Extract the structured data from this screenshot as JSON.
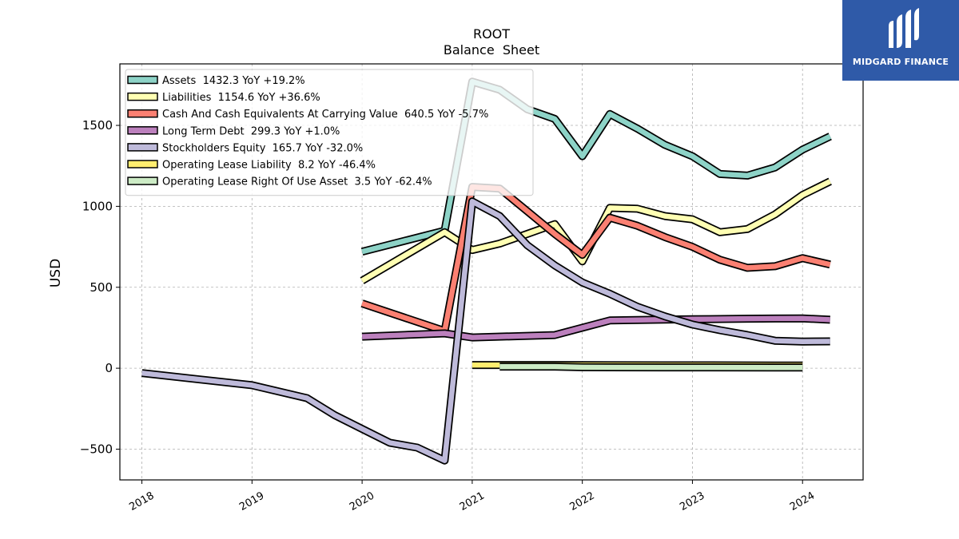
{
  "chart_data": {
    "type": "line",
    "title": "ROOT",
    "subtitle": "Balance  Sheet",
    "xlabel": "",
    "ylabel": "USD",
    "xlim": [
      2017.8,
      2024.55
    ],
    "ylim": [
      -690,
      1880
    ],
    "x_ticks": [
      2018,
      2019,
      2020,
      2021,
      2022,
      2023,
      2024
    ],
    "x_tick_labels": [
      "2018",
      "2019",
      "2020",
      "2021",
      "2022",
      "2023",
      "2024"
    ],
    "y_ticks": [
      -500,
      0,
      500,
      1000,
      1500
    ],
    "y_tick_labels": [
      "−500",
      "0",
      "500",
      "1000",
      "1500"
    ],
    "grid": true,
    "legend_position": "top-left",
    "series": [
      {
        "name": "Assets",
        "legend": "Assets  1432.3 YoY +19.2%",
        "color": "#8dd3c7",
        "x": [
          2020.0,
          2020.75,
          2021.0,
          2021.25,
          2021.5,
          2021.75,
          2022.0,
          2022.25,
          2022.5,
          2022.75,
          2023.0,
          2023.25,
          2023.5,
          2023.75,
          2024.0,
          2024.25
        ],
        "y": [
          720,
          850,
          1770,
          1720,
          1600,
          1540,
          1310,
          1570,
          1480,
          1380,
          1310,
          1200,
          1190,
          1240,
          1350,
          1432.3
        ]
      },
      {
        "name": "Liabilities",
        "legend": "Liabilities  1154.6 YoY +36.6%",
        "color": "#ffffb3",
        "x": [
          2020.0,
          2020.75,
          2021.0,
          2021.25,
          2021.5,
          2021.75,
          2022.0,
          2022.25,
          2022.5,
          2022.75,
          2023.0,
          2023.25,
          2023.5,
          2023.75,
          2024.0,
          2024.25
        ],
        "y": [
          540,
          840,
          730,
          770,
          830,
          890,
          660,
          990,
          985,
          940,
          920,
          840,
          860,
          950,
          1070,
          1154.6
        ]
      },
      {
        "name": "Cash And Cash Equivalents At Carrying Value",
        "legend": "Cash And Cash Equivalents At Carrying Value  640.5 YoY -5.7%",
        "color": "#fb8072",
        "x": [
          2020.0,
          2020.75,
          2021.0,
          2021.25,
          2021.5,
          2021.75,
          2022.0,
          2022.25,
          2022.5,
          2022.75,
          2023.0,
          2023.25,
          2023.5,
          2023.75,
          2024.0,
          2024.25
        ],
        "y": [
          400,
          230,
          1120,
          1110,
          970,
          830,
          700,
          930,
          880,
          810,
          750,
          670,
          620,
          630,
          680,
          640.5
        ]
      },
      {
        "name": "Long Term Debt",
        "legend": "Long Term Debt  299.3 YoY +1.0%",
        "color": "#bc80bd",
        "x": [
          2020.0,
          2020.75,
          2021.0,
          2021.75,
          2022.0,
          2022.25,
          2022.75,
          2023.0,
          2023.25,
          2023.5,
          2023.75,
          2024.0,
          2024.25
        ],
        "y": [
          195,
          215,
          190,
          205,
          250,
          295,
          300,
          303,
          304,
          306,
          307,
          308,
          299.3
        ]
      },
      {
        "name": "Stockholders Equity",
        "legend": "Stockholders Equity  165.7 YoY -32.0%",
        "color": "#bebada",
        "x": [
          2018.0,
          2019.0,
          2019.5,
          2019.75,
          2020.0,
          2020.25,
          2020.5,
          2020.75,
          2021.0,
          2021.25,
          2021.5,
          2021.75,
          2022.0,
          2022.25,
          2022.5,
          2022.75,
          2023.0,
          2023.25,
          2023.5,
          2023.75,
          2024.0,
          2024.25
        ],
        "y": [
          -30,
          -105,
          -185,
          -290,
          -375,
          -460,
          -490,
          -570,
          1030,
          940,
          760,
          635,
          530,
          460,
          380,
          320,
          270,
          235,
          205,
          170,
          165,
          165.7
        ]
      },
      {
        "name": "Operating Lease Liability",
        "legend": "Operating Lease Liability  8.2 YoY -46.4%",
        "color": "#ffed6f",
        "x": [
          2021.0,
          2021.75,
          2022.0,
          2022.75,
          2023.0,
          2023.75,
          2024.0
        ],
        "y": [
          20,
          20,
          19,
          18,
          18,
          17,
          17
        ]
      },
      {
        "name": "Operating Lease Right Of Use Asset",
        "legend": "Operating Lease Right Of Use Asset  3.5 YoY -62.4%",
        "color": "#ccebc5",
        "x": [
          2021.25,
          2021.75,
          2022.0,
          2022.75,
          2023.0,
          2023.75,
          2024.0
        ],
        "y": [
          10,
          10,
          6,
          5,
          5,
          4,
          4
        ]
      }
    ]
  },
  "logo": {
    "text": "MIDGARD FINANCE",
    "color": "#2f5aa8"
  }
}
